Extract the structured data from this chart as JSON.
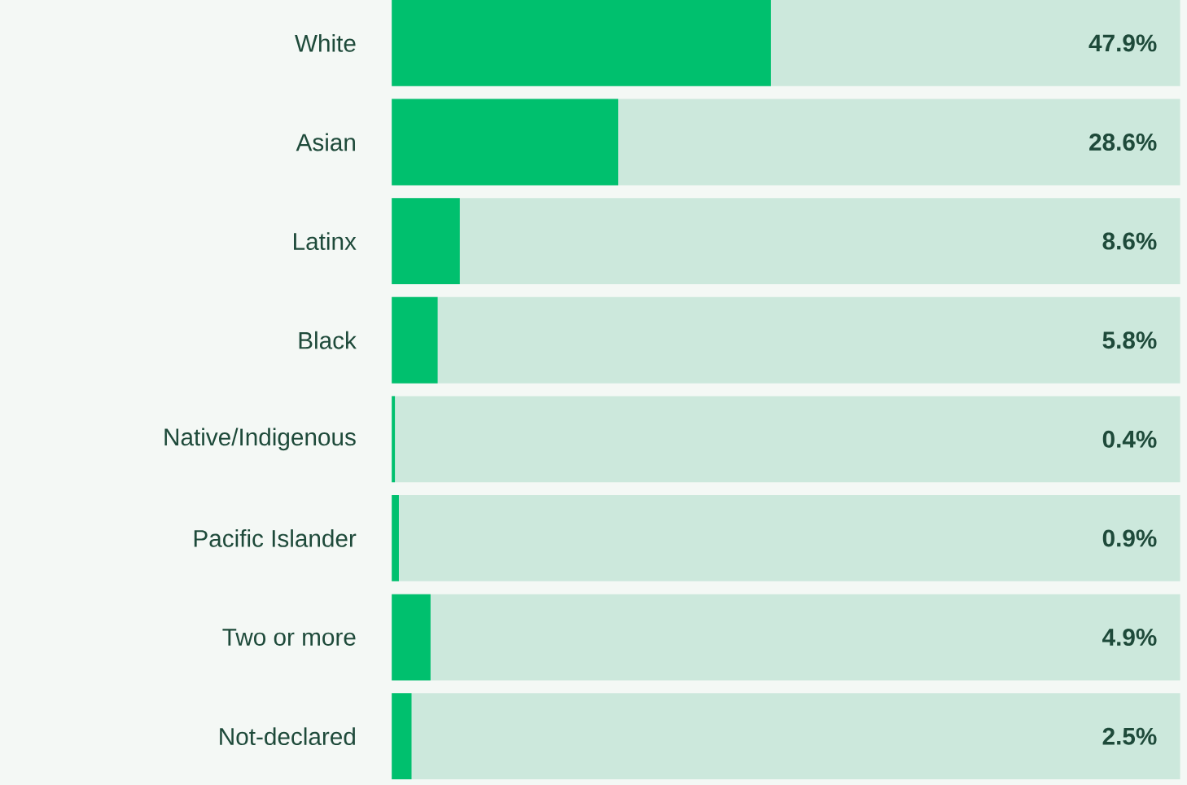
{
  "chart_data": {
    "type": "bar",
    "orientation": "horizontal",
    "categories": [
      "White",
      "Asian",
      "Latinx",
      "Black",
      "Native/Indigenous",
      "Pacific Islander",
      "Two or more",
      "Not-declared"
    ],
    "series": [
      {
        "color": "#00c06e",
        "values": [
          47.9,
          28.6,
          8.6,
          5.8,
          0.4,
          0.9,
          4.9,
          2.5
        ],
        "value_labels": [
          "47.9%",
          "28.6%",
          "8.6%",
          "5.8%",
          "0.4%",
          "0.9%",
          "4.9%",
          "2.5%"
        ]
      }
    ],
    "tick_labels": "y"
  }
}
